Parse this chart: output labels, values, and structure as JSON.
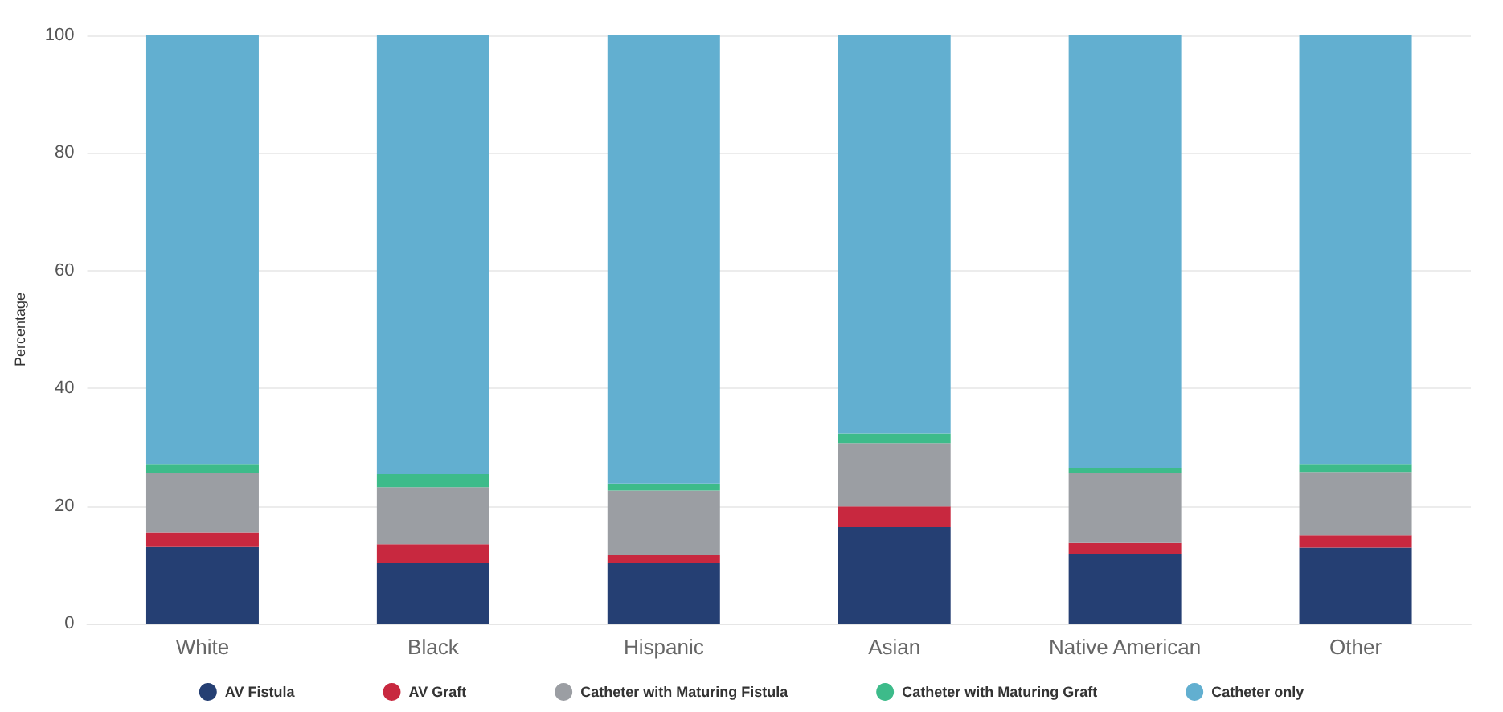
{
  "chart_data": {
    "type": "bar",
    "stacked": true,
    "ylabel": "Percentage",
    "categories": [
      "White",
      "Black",
      "Hispanic",
      "Asian",
      "Native American",
      "Other"
    ],
    "series": [
      {
        "name": "AV Fistula",
        "color": "#253f73",
        "values": [
          13,
          10.3,
          10.3,
          16.4,
          11.8,
          12.9
        ]
      },
      {
        "name": "AV Graft",
        "color": "#c8283f",
        "values": [
          2.5,
          3.2,
          1.3,
          3.5,
          1.9,
          2.1
        ]
      },
      {
        "name": "Catheter with Maturing Fistula",
        "color": "#9b9ea3",
        "values": [
          10.1,
          9.7,
          11,
          10.8,
          11.9,
          10.8
        ]
      },
      {
        "name": "Catheter with Maturing Graft",
        "color": "#3dbb8a",
        "values": [
          1.4,
          2.2,
          1.2,
          1.6,
          0.9,
          1.2
        ]
      },
      {
        "name": "Catheter only",
        "color": "#62afd0",
        "values": [
          73,
          74.6,
          76.2,
          67.7,
          73.5,
          73
        ]
      }
    ],
    "ylim": [
      0,
      100
    ],
    "yticks": [
      0,
      20,
      40,
      60,
      80,
      100
    ],
    "grid": "y",
    "legend": "bottom"
  }
}
